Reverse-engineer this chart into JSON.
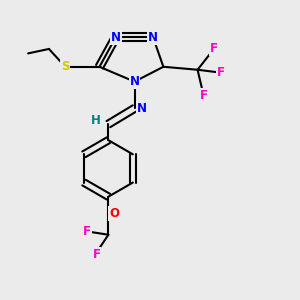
{
  "background_color": "#ebebeb",
  "bond_color": "#000000",
  "bond_width": 1.5,
  "colors": {
    "N": "#0000FF",
    "S": "#CCCC00",
    "O": "#FF0000",
    "F": "#FF00CC",
    "H": "#008080",
    "C": "#000000"
  },
  "figsize": [
    3.0,
    3.0
  ],
  "dpi": 100
}
